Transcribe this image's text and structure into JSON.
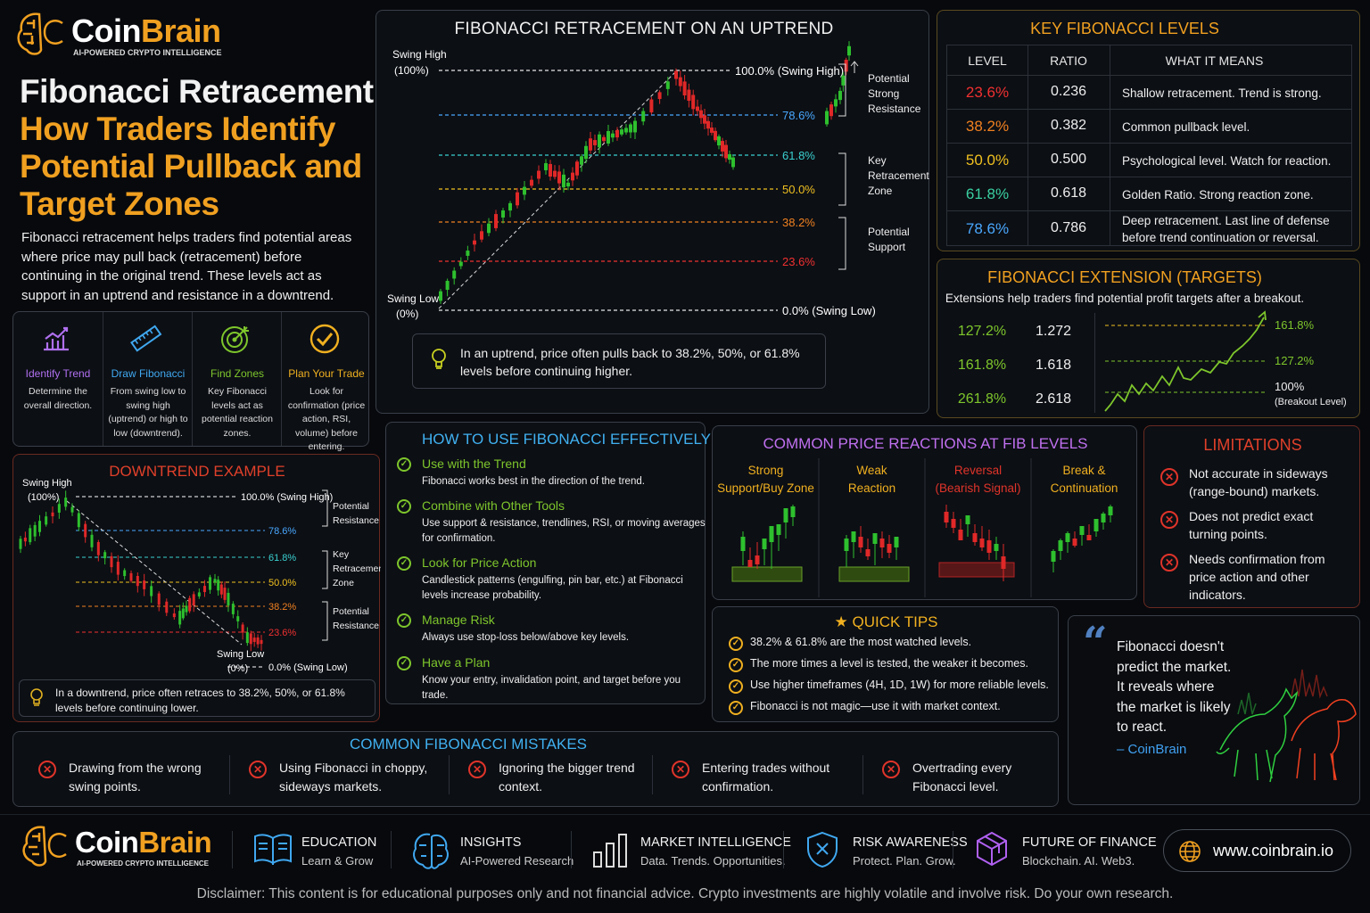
{
  "brand": {
    "name": "CoinBrain",
    "name_coin": "Coin",
    "name_brain": "Brain",
    "tagline": "AI-POWERED CRYPTO INTELLIGENCE"
  },
  "title": {
    "line1": "Fibonacci Retracement:",
    "line2": "How Traders Identify",
    "line3": "Potential Pullback and",
    "line4": "Target Zones"
  },
  "intro": "Fibonacci retracement helps traders find potential areas where price may pull back (retracement) before continuing in the original trend. These levels act as support in an uptrend and resistance in a downtrend.",
  "steps": [
    {
      "title": "Identify Trend",
      "desc": "Determine the overall direction.",
      "color": "#b070f0",
      "icon": "trend-chart-icon"
    },
    {
      "title": "Draw Fibonacci",
      "desc": "From swing low to swing high (uptrend) or high to low (downtrend).",
      "color": "#40a8f0",
      "icon": "ruler-icon"
    },
    {
      "title": "Find Zones",
      "desc": "Key Fibonacci levels act as potential reaction zones.",
      "color": "#7ec62c",
      "icon": "target-icon"
    },
    {
      "title": "Plan Your Trade",
      "desc": "Look for confirmation (price action, RSI, volume) before entering.",
      "color": "#f0b020",
      "icon": "check-circle-icon"
    }
  ],
  "uptrend": {
    "title": "FIBONACCI RETRACEMENT ON AN UPTREND",
    "swing_high": "Swing High",
    "swing_high_pct": "(100%)",
    "swing_low": "Swing Low",
    "swing_low_pct": "(0%)",
    "levels": [
      {
        "label": "100.0% (Swing High)",
        "color": "#ffffff"
      },
      {
        "label": "78.6%",
        "color": "#4aa8ff"
      },
      {
        "label": "61.8%",
        "color": "#3ad0d0"
      },
      {
        "label": "50.0%",
        "color": "#f0c020"
      },
      {
        "label": "38.2%",
        "color": "#f08020"
      },
      {
        "label": "23.6%",
        "color": "#f03030"
      },
      {
        "label": "0.0% (Swing Low)",
        "color": "#ffffff"
      }
    ],
    "zones": [
      "Potential Strong Resistance",
      "Key Retracement Zone",
      "Potential Support"
    ],
    "note": "In an uptrend, price often pulls back to 38.2%, 50%, or 61.8% levels before continuing higher."
  },
  "key_levels": {
    "title": "KEY FIBONACCI LEVELS",
    "headers": [
      "LEVEL",
      "RATIO",
      "WHAT IT MEANS"
    ],
    "rows": [
      {
        "level": "23.6%",
        "ratio": "0.236",
        "meaning": "Shallow retracement. Trend is strong.",
        "color": "#f03030"
      },
      {
        "level": "38.2%",
        "ratio": "0.382",
        "meaning": "Common pullback level.",
        "color": "#f08020"
      },
      {
        "level": "50.0%",
        "ratio": "0.500",
        "meaning": "Psychological level. Watch for reaction.",
        "color": "#f0c020"
      },
      {
        "level": "61.8%",
        "ratio": "0.618",
        "meaning": "Golden Ratio. Strong reaction zone.",
        "color": "#3ad0a0"
      },
      {
        "level": "78.6%",
        "ratio": "0.786",
        "meaning": "Deep retracement. Last line of defense before trend continuation or reversal.",
        "color": "#4aa8ff"
      }
    ]
  },
  "extension": {
    "title": "FIBONACCI EXTENSION (TARGETS)",
    "subtitle": "Extensions help traders find potential profit targets after a breakout.",
    "rows": [
      {
        "level": "127.2%",
        "ratio": "1.272"
      },
      {
        "level": "161.8%",
        "ratio": "1.618"
      },
      {
        "level": "261.8%",
        "ratio": "2.618"
      }
    ],
    "chart_labels": [
      "161.8%",
      "127.2%",
      "100%",
      "(Breakout Level)"
    ]
  },
  "downtrend": {
    "title": "DOWNTREND EXAMPLE",
    "swing_high": "Swing High",
    "swing_high_pct": "(100%)",
    "swing_low": "Swing Low",
    "swing_low_pct": "(0%)",
    "levels": [
      {
        "label": "100.0% (Swing High)",
        "color": "#ffffff"
      },
      {
        "label": "78.6%",
        "color": "#4aa8ff"
      },
      {
        "label": "61.8%",
        "color": "#3ad0d0"
      },
      {
        "label": "50.0%",
        "color": "#f0c020"
      },
      {
        "label": "38.2%",
        "color": "#f08020"
      },
      {
        "label": "23.6%",
        "color": "#f03030"
      },
      {
        "label": "0.0% (Swing Low)",
        "color": "#ffffff"
      }
    ],
    "zones": [
      "Potential Resistance",
      "Key Retracement Zone",
      "Potential Resistance"
    ],
    "note": "In a downtrend, price often retraces to 38.2%, 50%, or 61.8% levels before continuing lower."
  },
  "howto": {
    "title": "HOW TO USE FIBONACCI EFFECTIVELY",
    "items": [
      {
        "title": "Use with the Trend",
        "desc": "Fibonacci works best in the direction of the trend."
      },
      {
        "title": "Combine with Other Tools",
        "desc": "Use support & resistance, trendlines, RSI, or moving averages for confirmation."
      },
      {
        "title": "Look for Price Action",
        "desc": "Candlestick patterns (engulfing, pin bar, etc.) at Fibonacci levels increase probability."
      },
      {
        "title": "Manage Risk",
        "desc": "Always use stop-loss below/above key levels."
      },
      {
        "title": "Have a Plan",
        "desc": "Know your entry, invalidation point, and target before you trade."
      }
    ]
  },
  "reactions": {
    "title": "COMMON PRICE REACTIONS AT FIB LEVELS",
    "items": [
      {
        "label1": "Strong",
        "label2": "Support/Buy Zone",
        "color": "#f0b020"
      },
      {
        "label1": "Weak",
        "label2": "Reaction",
        "color": "#f0b020"
      },
      {
        "label1": "Reversal",
        "label2": "(Bearish Signal)",
        "color": "#e0342a"
      },
      {
        "label1": "Break &",
        "label2": "Continuation",
        "color": "#f0b020"
      }
    ]
  },
  "limitations": {
    "title": "LIMITATIONS",
    "items": [
      "Not accurate in sideways (range-bound) markets.",
      "Does not predict exact turning points.",
      "Needs confirmation from price action and other indicators."
    ]
  },
  "tips": {
    "title": "QUICK TIPS",
    "items": [
      "38.2% & 61.8% are the most watched levels.",
      "The more times a level is tested, the weaker it becomes.",
      "Use higher timeframes (4H, 1D, 1W) for more reliable levels.",
      "Fibonacci is not magic—use it with market context."
    ]
  },
  "quote": {
    "mark": "“",
    "text1": "Fibonacci doesn't",
    "text2": "predict the market.",
    "text3": "It reveals where",
    "text4": "the market is likely",
    "text5": "to react.",
    "author": "– CoinBrain"
  },
  "mistakes": {
    "title": "COMMON FIBONACCI MISTAKES",
    "items": [
      "Drawing from the wrong swing points.",
      "Using Fibonacci in choppy, sideways markets.",
      "Ignoring the bigger trend context.",
      "Entering trades without confirmation.",
      "Overtrading every Fibonacci level."
    ]
  },
  "footer": {
    "items": [
      {
        "title": "EDUCATION",
        "sub": "Learn & Grow",
        "icon": "book-icon"
      },
      {
        "title": "INSIGHTS",
        "sub": "AI-Powered Research",
        "icon": "brain-icon"
      },
      {
        "title": "MARKET INTELLIGENCE",
        "sub": "Data. Trends. Opportunities.",
        "icon": "bar-chart-icon"
      },
      {
        "title": "RISK AWARENESS",
        "sub": "Protect. Plan. Grow.",
        "icon": "shield-icon"
      },
      {
        "title": "FUTURE OF FINANCE",
        "sub": "Blockchain. AI. Web3.",
        "icon": "cube-icon"
      }
    ],
    "url": "www.coinbrain.io",
    "disclaimer": "Disclaimer: This content is for educational purposes only and not financial advice. Crypto investments are highly volatile and involve risk. Do your own research."
  }
}
